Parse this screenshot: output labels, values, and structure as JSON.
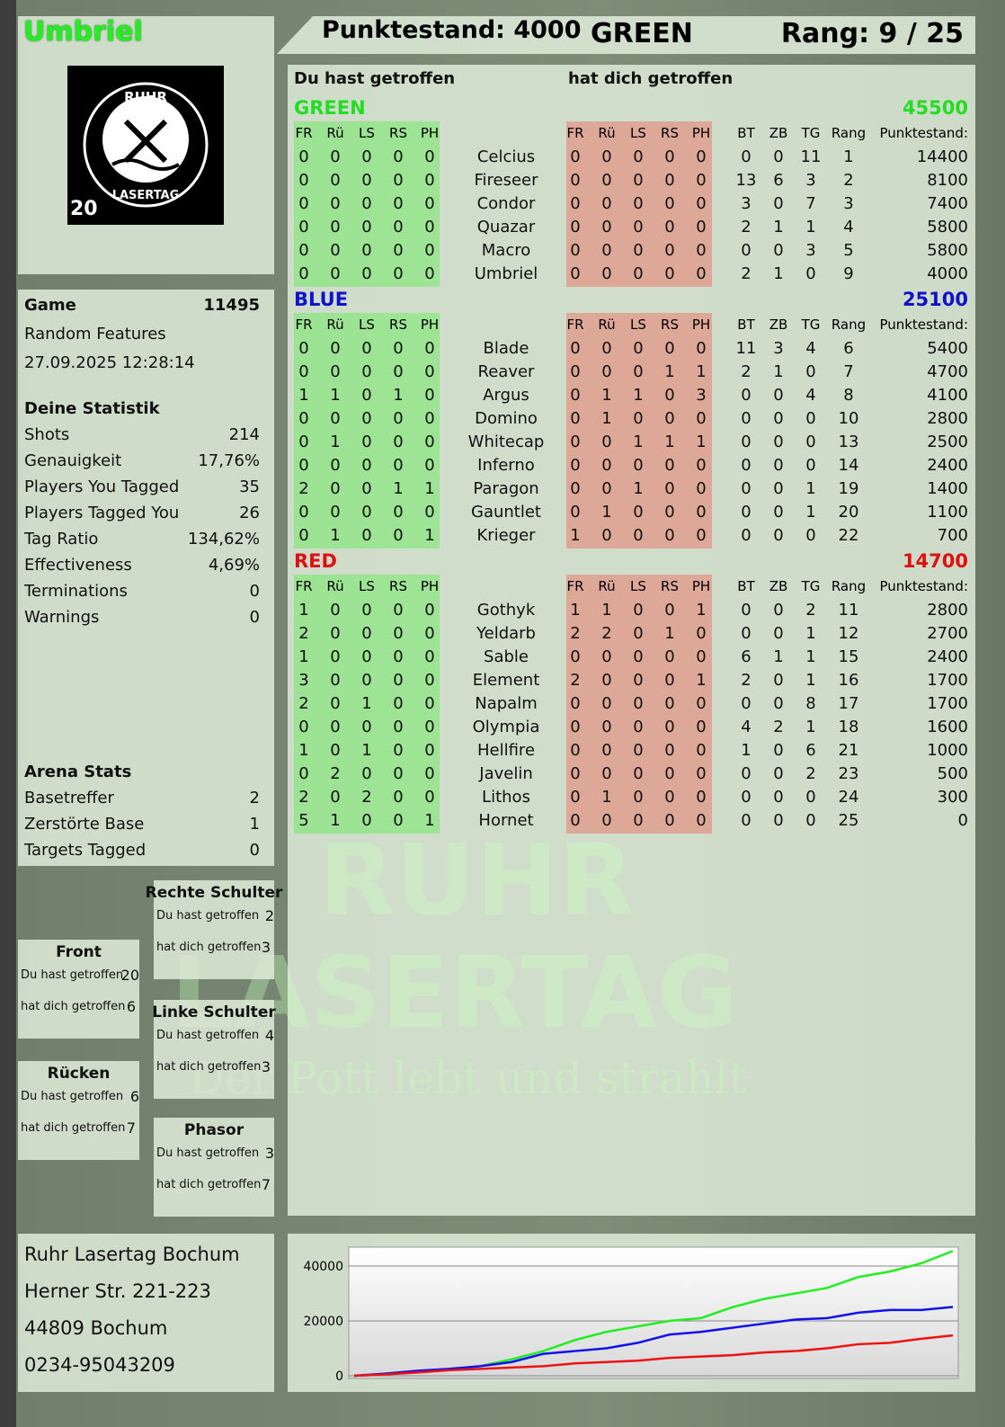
{
  "player": {
    "name": "Umbriel",
    "logo_text": "RUHR LASERTAG 20"
  },
  "header": {
    "score_label": "Punktestand: 4000",
    "team": "GREEN",
    "rank_label": "Rang: 9 / 25"
  },
  "game": {
    "game_label": "Game",
    "game_id": "11495",
    "mode": "Random Features",
    "datetime": "27.09.2025 12:28:14"
  },
  "stats": {
    "title": "Deine Statistik",
    "rows": [
      [
        "Shots",
        "214"
      ],
      [
        "Genauigkeit",
        "17,76%"
      ],
      [
        "Players You Tagged",
        "35"
      ],
      [
        "Players Tagged You",
        "26"
      ],
      [
        "Tag Ratio",
        "134,62%"
      ],
      [
        "Effectiveness",
        "4,69%"
      ],
      [
        "Terminations",
        "0"
      ],
      [
        "Warnings",
        "0"
      ]
    ]
  },
  "arena": {
    "title": "Arena Stats",
    "rows": [
      [
        "Basetreffer",
        "2"
      ],
      [
        "Zerstörte Base",
        "1"
      ],
      [
        "Targets Tagged",
        "0"
      ]
    ]
  },
  "hitzones": [
    {
      "title": "Rechte Schulter",
      "you_hit_label": "Du hast getroffen",
      "you_hit": "2",
      "hit_you_label": "hat dich getroffen",
      "hit_you": "3"
    },
    {
      "title": "Front",
      "you_hit_label": "Du hast getroffen",
      "you_hit": "20",
      "hit_you_label": "hat dich getroffen",
      "hit_you": "6"
    },
    {
      "title": "Linke Schulter",
      "you_hit_label": "Du hast getroffen",
      "you_hit": "4",
      "hit_you_label": "hat dich getroffen",
      "hit_you": "3"
    },
    {
      "title": "Rücken",
      "you_hit_label": "Du hast getroffen",
      "you_hit": "6",
      "hit_you_label": "hat dich getroffen",
      "hit_you": "7"
    },
    {
      "title": "Phasor",
      "you_hit_label": "Du hast getroffen",
      "you_hit": "3",
      "hit_you_label": "hat dich getroffen",
      "hit_you": "7"
    }
  ],
  "address": {
    "lines": [
      "Ruhr Lasertag Bochum",
      "Herner Str. 221-223",
      "44809 Bochum",
      "0234-95043209"
    ]
  },
  "watermark": {
    "line1": "RUHR",
    "line2": "LASERTAG",
    "line3": "Der Pott lebt und strahlt"
  },
  "table": {
    "you_hit_heading": "Du hast getroffen",
    "hit_you_heading": "hat dich getroffen",
    "columns": [
      "FR",
      "Rü",
      "LS",
      "RS",
      "PH",
      "FR",
      "Rü",
      "LS",
      "RS",
      "PH",
      "BT",
      "ZB",
      "TG",
      "Rang",
      "Punktestand:"
    ],
    "teams": [
      {
        "name": "GREEN",
        "total": "45500",
        "color": "#22dd22",
        "players": [
          [
            "Celcius",
            [
              0,
              0,
              0,
              0,
              0
            ],
            [
              0,
              0,
              0,
              0,
              0
            ],
            [
              0,
              0,
              11,
              1
            ],
            "14400"
          ],
          [
            "Fireseer",
            [
              0,
              0,
              0,
              0,
              0
            ],
            [
              0,
              0,
              0,
              0,
              0
            ],
            [
              13,
              6,
              3,
              2
            ],
            "8100"
          ],
          [
            "Condor",
            [
              0,
              0,
              0,
              0,
              0
            ],
            [
              0,
              0,
              0,
              0,
              0
            ],
            [
              3,
              0,
              7,
              3
            ],
            "7400"
          ],
          [
            "Quazar",
            [
              0,
              0,
              0,
              0,
              0
            ],
            [
              0,
              0,
              0,
              0,
              0
            ],
            [
              2,
              1,
              1,
              4
            ],
            "5800"
          ],
          [
            "Macro",
            [
              0,
              0,
              0,
              0,
              0
            ],
            [
              0,
              0,
              0,
              0,
              0
            ],
            [
              0,
              0,
              3,
              5
            ],
            "5800"
          ],
          [
            "Umbriel",
            [
              0,
              0,
              0,
              0,
              0
            ],
            [
              0,
              0,
              0,
              0,
              0
            ],
            [
              2,
              1,
              0,
              9
            ],
            "4000"
          ]
        ]
      },
      {
        "name": "BLUE",
        "total": "25100",
        "color": "#1111cc",
        "players": [
          [
            "Blade",
            [
              0,
              0,
              0,
              0,
              0
            ],
            [
              0,
              0,
              0,
              0,
              0
            ],
            [
              11,
              3,
              4,
              6
            ],
            "5400"
          ],
          [
            "Reaver",
            [
              0,
              0,
              0,
              0,
              0
            ],
            [
              0,
              0,
              0,
              1,
              1
            ],
            [
              2,
              1,
              0,
              7
            ],
            "4700"
          ],
          [
            "Argus",
            [
              1,
              1,
              0,
              1,
              0
            ],
            [
              0,
              1,
              1,
              0,
              3
            ],
            [
              0,
              0,
              4,
              8
            ],
            "4100"
          ],
          [
            "Domino",
            [
              0,
              0,
              0,
              0,
              0
            ],
            [
              0,
              1,
              0,
              0,
              0
            ],
            [
              0,
              0,
              0,
              10
            ],
            "2800"
          ],
          [
            "Whitecap",
            [
              0,
              1,
              0,
              0,
              0
            ],
            [
              0,
              0,
              1,
              1,
              1
            ],
            [
              0,
              0,
              0,
              13
            ],
            "2500"
          ],
          [
            "Inferno",
            [
              0,
              0,
              0,
              0,
              0
            ],
            [
              0,
              0,
              0,
              0,
              0
            ],
            [
              0,
              0,
              0,
              14
            ],
            "2400"
          ],
          [
            "Paragon",
            [
              2,
              0,
              0,
              1,
              1
            ],
            [
              0,
              0,
              1,
              0,
              0
            ],
            [
              0,
              0,
              1,
              19
            ],
            "1400"
          ],
          [
            "Gauntlet",
            [
              0,
              0,
              0,
              0,
              0
            ],
            [
              0,
              1,
              0,
              0,
              0
            ],
            [
              0,
              0,
              1,
              20
            ],
            "1100"
          ],
          [
            "Krieger",
            [
              0,
              1,
              0,
              0,
              1
            ],
            [
              1,
              0,
              0,
              0,
              0
            ],
            [
              0,
              0,
              0,
              22
            ],
            "700"
          ]
        ]
      },
      {
        "name": "RED",
        "total": "14700",
        "color": "#dd1111",
        "players": [
          [
            "Gothyk",
            [
              1,
              0,
              0,
              0,
              0
            ],
            [
              1,
              1,
              0,
              0,
              1
            ],
            [
              0,
              0,
              2,
              11
            ],
            "2800"
          ],
          [
            "Yeldarb",
            [
              2,
              0,
              0,
              0,
              0
            ],
            [
              2,
              2,
              0,
              1,
              0
            ],
            [
              0,
              0,
              1,
              12
            ],
            "2700"
          ],
          [
            "Sable",
            [
              1,
              0,
              0,
              0,
              0
            ],
            [
              0,
              0,
              0,
              0,
              0
            ],
            [
              6,
              1,
              1,
              15
            ],
            "2400"
          ],
          [
            "Element",
            [
              3,
              0,
              0,
              0,
              0
            ],
            [
              2,
              0,
              0,
              0,
              1
            ],
            [
              2,
              0,
              1,
              16
            ],
            "1700"
          ],
          [
            "Napalm",
            [
              2,
              0,
              1,
              0,
              0
            ],
            [
              0,
              0,
              0,
              0,
              0
            ],
            [
              0,
              0,
              8,
              17
            ],
            "1700"
          ],
          [
            "Olympia",
            [
              0,
              0,
              0,
              0,
              0
            ],
            [
              0,
              0,
              0,
              0,
              0
            ],
            [
              4,
              2,
              1,
              18
            ],
            "1600"
          ],
          [
            "Hellfire",
            [
              1,
              0,
              1,
              0,
              0
            ],
            [
              0,
              0,
              0,
              0,
              0
            ],
            [
              1,
              0,
              6,
              21
            ],
            "1000"
          ],
          [
            "Javelin",
            [
              0,
              2,
              0,
              0,
              0
            ],
            [
              0,
              0,
              0,
              0,
              0
            ],
            [
              0,
              0,
              2,
              23
            ],
            "500"
          ],
          [
            "Lithos",
            [
              2,
              0,
              2,
              0,
              0
            ],
            [
              0,
              1,
              0,
              0,
              0
            ],
            [
              0,
              0,
              0,
              24
            ],
            "300"
          ],
          [
            "Hornet",
            [
              5,
              1,
              0,
              0,
              1
            ],
            [
              0,
              0,
              0,
              0,
              0
            ],
            [
              0,
              0,
              0,
              25
            ],
            "0"
          ]
        ]
      }
    ]
  },
  "chart_data": {
    "type": "line",
    "ylim": [
      0,
      46900
    ],
    "yticks": [
      "0",
      "20000",
      "40000"
    ],
    "grid": true,
    "series": [
      {
        "color": "#22ee22",
        "values": [
          0,
          500,
          1500,
          2500,
          3500,
          6000,
          9000,
          13000,
          16000,
          18000,
          20000,
          21000,
          25000,
          28000,
          30000,
          32000,
          36000,
          38000,
          41000,
          45500
        ]
      },
      {
        "color": "#1111ee",
        "values": [
          0,
          800,
          1800,
          2500,
          3500,
          5000,
          8000,
          9000,
          10000,
          12000,
          15000,
          16000,
          17500,
          19000,
          20500,
          21000,
          23000,
          24000,
          24000,
          25100
        ]
      },
      {
        "color": "#ee1111",
        "values": [
          0,
          500,
          1200,
          2000,
          2500,
          3000,
          3500,
          4500,
          5000,
          5500,
          6500,
          7000,
          7500,
          8500,
          9000,
          10000,
          11500,
          12000,
          13500,
          14700
        ]
      }
    ]
  }
}
